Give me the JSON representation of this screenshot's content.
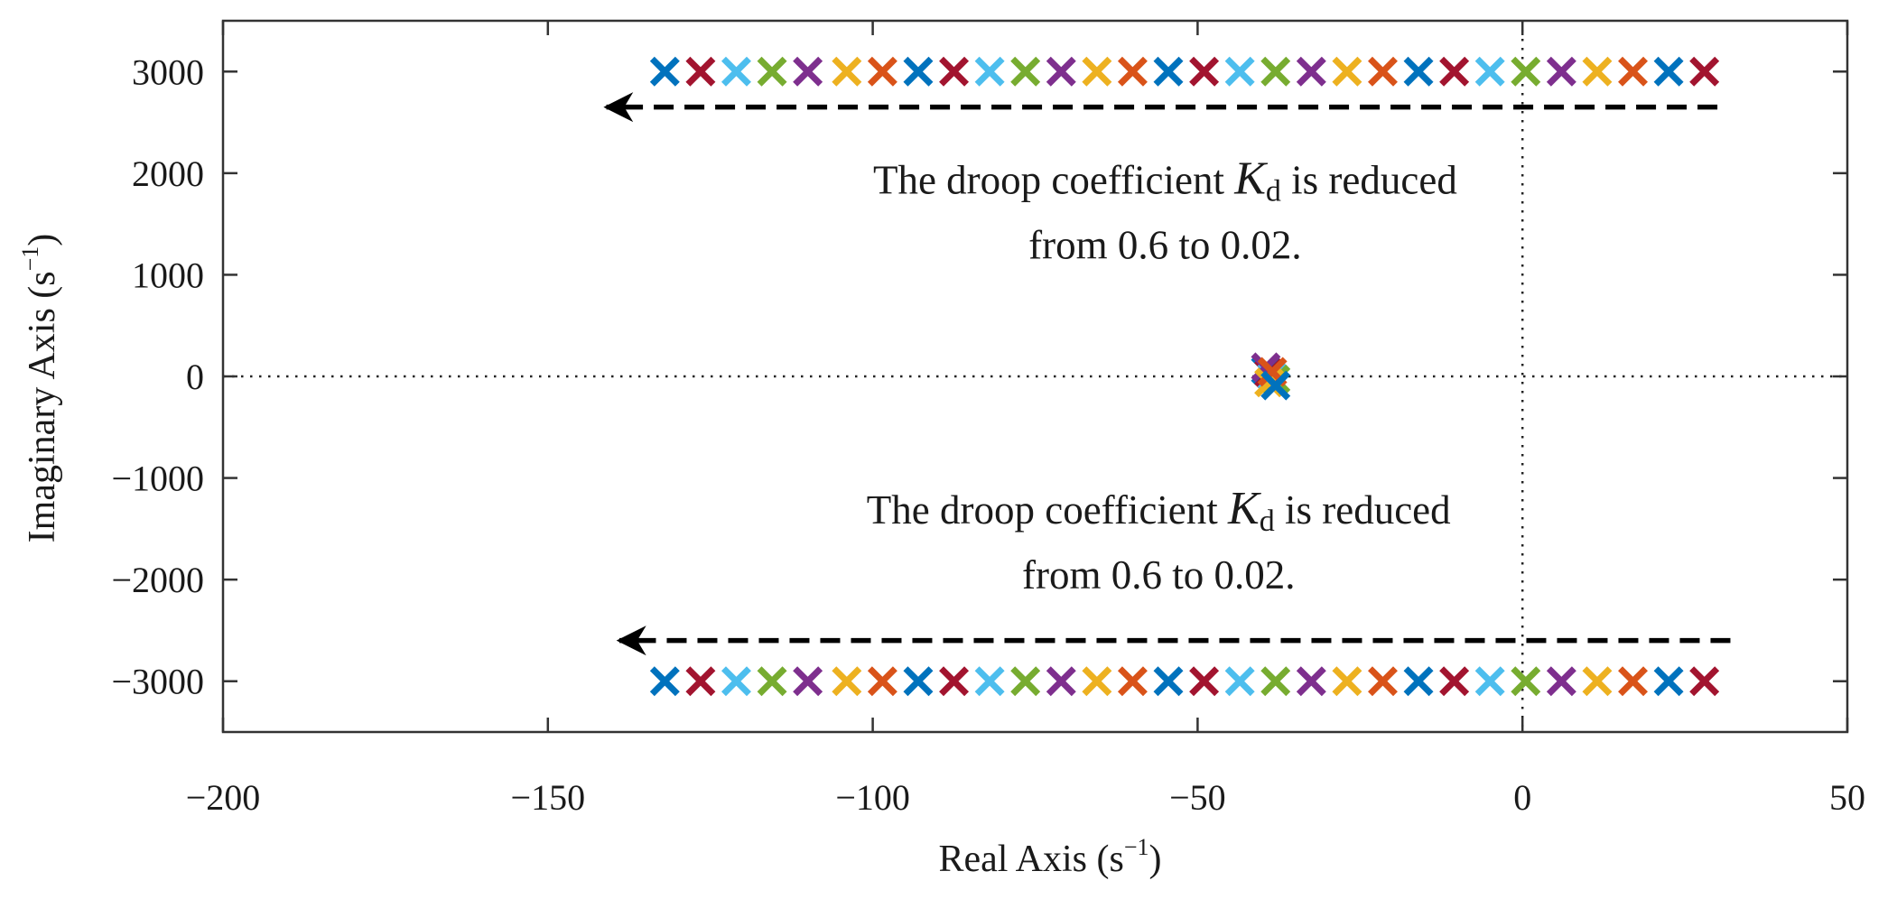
{
  "chart_data": {
    "type": "scatter",
    "title": "",
    "xlabel": "Real Axis (s",
    "xlabel_unit_sup": "−1",
    "xlabel_close": ")",
    "ylabel": "Imaginary Axis (s",
    "ylabel_unit_sup": "−1",
    "ylabel_close": ")",
    "xlim": [
      -200,
      50
    ],
    "ylim": [
      -3500,
      3500
    ],
    "xticks": [
      -200,
      -150,
      -100,
      -50,
      0,
      50
    ],
    "xtick_labels": [
      "−200",
      "−150",
      "−100",
      "−50",
      "0",
      "50"
    ],
    "yticks": [
      3000,
      2000,
      1000,
      0,
      -1000,
      -2000,
      -3000
    ],
    "ytick_labels": [
      "3000",
      "2000",
      "1000",
      "0",
      "−1000",
      "−2000",
      "−3000"
    ],
    "grid": false,
    "reference_lines": {
      "x": 0,
      "y": 0,
      "style": "dotted"
    },
    "marker": "x",
    "palette": [
      "#0072BD",
      "#A2142F",
      "#4DBEEE",
      "#77AC30",
      "#7E2F8E",
      "#EDB120",
      "#D95319"
    ],
    "series": [
      {
        "x": [
          -132,
          -126.5,
          -121,
          -115.5,
          -110,
          -104,
          -98.5,
          -93,
          -87.5,
          -82,
          -76.5,
          -71,
          -65.5,
          -60,
          -54.5,
          -49,
          -43.5,
          -38,
          -32.5,
          -27,
          -21.5,
          -16,
          -10.5,
          -5,
          0.5,
          6,
          11.5,
          17,
          22.5,
          28
        ],
        "y": [
          3000,
          3000,
          3000,
          3000,
          3000,
          3000,
          3000,
          3000,
          3000,
          3000,
          3000,
          3000,
          3000,
          3000,
          3000,
          3000,
          3000,
          3000,
          3000,
          3000,
          3000,
          3000,
          3000,
          3000,
          3000,
          3000,
          3000,
          3000,
          3000,
          3000
        ]
      },
      {
        "x": [
          -132,
          -126.5,
          -121,
          -115.5,
          -110,
          -104,
          -98.5,
          -93,
          -87.5,
          -82,
          -76.5,
          -71,
          -65.5,
          -60,
          -54.5,
          -49,
          -43.5,
          -38,
          -32.5,
          -27,
          -21.5,
          -16,
          -10.5,
          -5,
          0.5,
          6,
          11.5,
          17,
          22.5,
          28
        ],
        "y": [
          -3000,
          -3000,
          -3000,
          -3000,
          -3000,
          -3000,
          -3000,
          -3000,
          -3000,
          -3000,
          -3000,
          -3000,
          -3000,
          -3000,
          -3000,
          -3000,
          -3000,
          -3000,
          -3000,
          -3000,
          -3000,
          -3000,
          -3000,
          -3000,
          -3000,
          -3000,
          -3000,
          -3000,
          -3000,
          -3000
        ]
      },
      {
        "x": [
          -39.5,
          -39,
          -38.5,
          -38,
          -39.5,
          -39,
          -38.5,
          -38
        ],
        "y": [
          60,
          30,
          0,
          -30,
          90,
          -60,
          45,
          -90
        ]
      }
    ],
    "arrows": [
      {
        "from": [
          30,
          2650
        ],
        "to": [
          -141,
          2650
        ],
        "style": "dashed"
      },
      {
        "from": [
          32,
          -2600
        ],
        "to": [
          -139,
          -2600
        ],
        "style": "dashed"
      }
    ],
    "annotations": [
      {
        "line1_prefix": "The droop coefficient ",
        "symbol": "K",
        "symbol_sub": "d",
        "line1_suffix": " is reduced",
        "line2": "from 0.6 to 0.02.",
        "x": -55,
        "y": 1800
      },
      {
        "line1_prefix": "The droop coefficient ",
        "symbol": "K",
        "symbol_sub": "d",
        "line1_suffix": " is reduced",
        "line2": "from 0.6 to 0.02.",
        "x": -56,
        "y": -1450
      }
    ]
  }
}
